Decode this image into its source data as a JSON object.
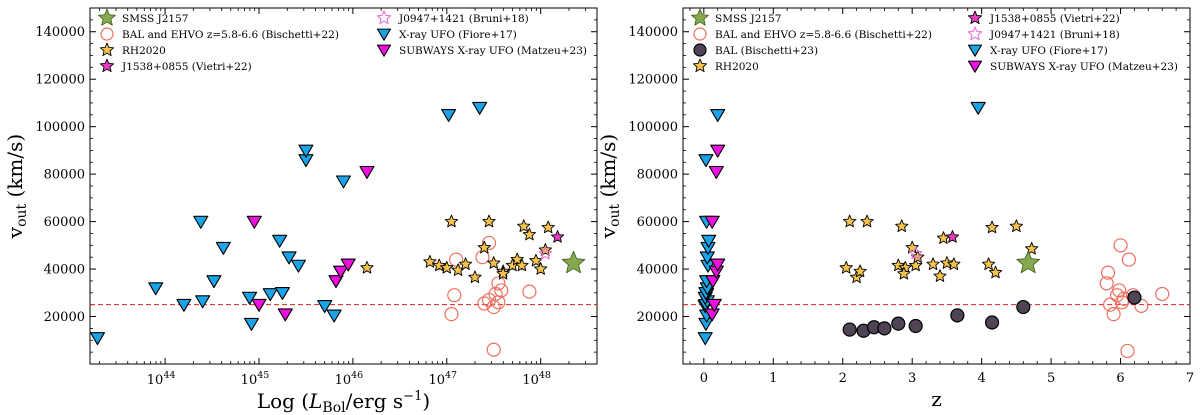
{
  "chart_data": [
    {
      "type": "scatter",
      "title": "",
      "xlabel": "Log (L_Bol/erg s^-1)",
      "xlabel_main": "Log (",
      "xlabel_L": "L",
      "xlabel_sub": "Bol",
      "xlabel_rest": "/erg s",
      "xlabel_sup": "−1",
      "xlabel_close": ")",
      "ylabel": "v_out (km/s)",
      "ylabel_main": "v",
      "ylabel_sub": "out",
      "ylabel_rest": " (km/s)",
      "xscale": "log",
      "xlim_log": [
        43.2,
        48.6
      ],
      "ylim": [
        0,
        150000
      ],
      "xticks_log": [
        44,
        45,
        46,
        47,
        48
      ],
      "xtick_labels": [
        "10",
        "10",
        "10",
        "10",
        "10"
      ],
      "xtick_sups": [
        "44",
        "45",
        "46",
        "47",
        "48"
      ],
      "yticks": [
        20000,
        40000,
        60000,
        80000,
        100000,
        120000,
        140000
      ],
      "ytick_labels": [
        "20000",
        "40000",
        "60000",
        "80000",
        "100000",
        "120000",
        "140000"
      ],
      "hline": 25000,
      "legend": [
        "SMSS J2157",
        "BAL and EHVO z=5.8-6.6 (Bischetti+22)",
        "RH2020",
        "J1538+0855 (Vietri+22)",
        "J0947+1421 (Bruni+18)",
        "X-ray UFO (Fiore+17)",
        "SUBWAYS X-ray UFO (Matzeu+23)"
      ],
      "series": [
        {
          "name": "SMSS J2157",
          "points": [
            [
              48.35,
              42500
            ]
          ]
        },
        {
          "name": "BAL and EHVO z=5.8-6.6 (Bischetti+22)",
          "points": [
            [
              47.05,
              21000
            ],
            [
              47.08,
              29000
            ],
            [
              47.1,
              44000
            ],
            [
              47.38,
              45000
            ],
            [
              47.45,
              51000
            ],
            [
              47.4,
              25500
            ],
            [
              47.45,
              27000
            ],
            [
              47.5,
              24000
            ],
            [
              47.52,
              29500
            ],
            [
              47.55,
              26000
            ],
            [
              47.58,
              31000
            ],
            [
              47.5,
              6000
            ],
            [
              47.88,
              30500
            ],
            [
              47.55,
              34000
            ]
          ]
        },
        {
          "name": "RH2020",
          "points": [
            [
              46.15,
              40500
            ],
            [
              46.82,
              43000
            ],
            [
              46.92,
              41500
            ],
            [
              47.05,
              60000
            ],
            [
              47.12,
              39500
            ],
            [
              47.2,
              42000
            ],
            [
              47.3,
              36500
            ],
            [
              47.4,
              49000
            ],
            [
              47.45,
              60000
            ],
            [
              47.5,
              42500
            ],
            [
              47.6,
              39000
            ],
            [
              47.7,
              41500
            ],
            [
              47.75,
              44000
            ],
            [
              47.8,
              41500
            ],
            [
              47.82,
              58000
            ],
            [
              47.88,
              54500
            ],
            [
              47.95,
              43500
            ],
            [
              48.0,
              40000
            ],
            [
              48.05,
              48000
            ],
            [
              48.08,
              57500
            ],
            [
              47.0,
              40500
            ],
            [
              47.6,
              38000
            ]
          ]
        },
        {
          "name": "J1538+0855 (Vietri+22)",
          "points": [
            [
              48.18,
              53500
            ]
          ]
        },
        {
          "name": "J0947+1421 (Bruni+18)",
          "points": [
            [
              48.05,
              46500
            ]
          ]
        },
        {
          "name": "X-ray UFO (Fiore+17)",
          "points": [
            [
              43.28,
              11000
            ],
            [
              43.9,
              32000
            ],
            [
              44.2,
              25000
            ],
            [
              44.4,
              26500
            ],
            [
              44.38,
              60000
            ],
            [
              44.52,
              35000
            ],
            [
              44.62,
              49000
            ],
            [
              44.92,
              17000
            ],
            [
              44.9,
              28000
            ],
            [
              45.12,
              29500
            ],
            [
              45.25,
              30000
            ],
            [
              45.22,
              52000
            ],
            [
              45.32,
              45000
            ],
            [
              45.42,
              41500
            ],
            [
              45.5,
              86000
            ],
            [
              45.5,
              90000
            ],
            [
              45.7,
              24500
            ],
            [
              45.8,
              20500
            ],
            [
              45.9,
              77000
            ],
            [
              47.02,
              105000
            ],
            [
              47.35,
              108000
            ]
          ]
        },
        {
          "name": "SUBWAYS X-ray UFO (Matzeu+23)",
          "points": [
            [
              44.95,
              60000
            ],
            [
              45.0,
              25000
            ],
            [
              45.28,
              21000
            ],
            [
              45.82,
              35000
            ],
            [
              45.87,
              39000
            ],
            [
              45.95,
              42000
            ],
            [
              46.15,
              81000
            ]
          ]
        }
      ]
    },
    {
      "type": "scatter",
      "title": "",
      "xlabel": "z",
      "ylabel": "v_out (km/s)",
      "ylabel_main": "v",
      "ylabel_sub": "out",
      "ylabel_rest": " (km/s)",
      "xlim": [
        -0.3,
        7
      ],
      "ylim": [
        0,
        150000
      ],
      "xticks": [
        0,
        1,
        2,
        3,
        4,
        5,
        6,
        7
      ],
      "xtick_labels": [
        "0",
        "1",
        "2",
        "3",
        "4",
        "5",
        "6",
        "7"
      ],
      "yticks": [
        20000,
        40000,
        60000,
        80000,
        100000,
        120000,
        140000
      ],
      "ytick_labels": [
        "20000",
        "40000",
        "60000",
        "80000",
        "100000",
        "120000",
        "140000"
      ],
      "hline": 25000,
      "legend": [
        "SMSS J2157",
        "BAL and EHVO z=5.8-6.6 (Bischetti+22)",
        "BAL (Bischetti+23)",
        "RH2020",
        "J1538+0855 (Vietri+22)",
        "J0947+1421 (Bruni+18)",
        "X-ray UFO (Fiore+17)",
        "SUBWAYS X-ray UFO (Matzeu+23)"
      ],
      "series": [
        {
          "name": "SMSS J2157",
          "points": [
            [
              4.67,
              42500
            ]
          ]
        },
        {
          "name": "BAL and EHVO z=5.8-6.6 (Bischetti+22)",
          "points": [
            [
              5.82,
              38500
            ],
            [
              5.85,
              25000
            ],
            [
              5.9,
              21000
            ],
            [
              5.95,
              29000
            ],
            [
              5.98,
              31000
            ],
            [
              6.02,
              26000
            ],
            [
              6.0,
              50000
            ],
            [
              6.05,
              27500
            ],
            [
              6.1,
              5500
            ],
            [
              6.12,
              44000
            ],
            [
              6.18,
              29000
            ],
            [
              6.3,
              24500
            ],
            [
              6.6,
              29500
            ],
            [
              5.8,
              34000
            ]
          ]
        },
        {
          "name": "BAL (Bischetti+23)",
          "points": [
            [
              2.1,
              14500
            ],
            [
              2.3,
              14000
            ],
            [
              2.45,
              15500
            ],
            [
              2.6,
              15000
            ],
            [
              2.8,
              17000
            ],
            [
              3.05,
              16000
            ],
            [
              3.65,
              20500
            ],
            [
              4.15,
              17500
            ],
            [
              4.6,
              24000
            ],
            [
              6.2,
              28000
            ]
          ]
        },
        {
          "name": "RH2020",
          "points": [
            [
              2.05,
              40500
            ],
            [
              2.1,
              60000
            ],
            [
              2.2,
              36500
            ],
            [
              2.25,
              39000
            ],
            [
              2.35,
              60000
            ],
            [
              2.8,
              41500
            ],
            [
              2.85,
              58000
            ],
            [
              2.9,
              40500
            ],
            [
              2.88,
              38000
            ],
            [
              3.0,
              49000
            ],
            [
              3.05,
              41500
            ],
            [
              3.08,
              45000
            ],
            [
              3.3,
              42000
            ],
            [
              3.4,
              37000
            ],
            [
              3.45,
              53000
            ],
            [
              3.5,
              42500
            ],
            [
              3.6,
              42000
            ],
            [
              4.1,
              42000
            ],
            [
              4.15,
              57500
            ],
            [
              4.2,
              38500
            ],
            [
              4.5,
              58000
            ],
            [
              4.72,
              48500
            ]
          ]
        },
        {
          "name": "J1538+0855 (Vietri+22)",
          "points": [
            [
              3.58,
              53500
            ]
          ]
        },
        {
          "name": "J0947+1421 (Bruni+18)",
          "points": [
            [
              3.05,
              46500
            ]
          ]
        },
        {
          "name": "X-ray UFO (Fiore+17)",
          "points": [
            [
              0.02,
              11000
            ],
            [
              0.03,
              17000
            ],
            [
              0.04,
              20500
            ],
            [
              0.02,
              24500
            ],
            [
              0.03,
              25000
            ],
            [
              0.05,
              26500
            ],
            [
              0.02,
              28000
            ],
            [
              0.04,
              29500
            ],
            [
              0.03,
              30000
            ],
            [
              0.05,
              32000
            ],
            [
              0.04,
              35000
            ],
            [
              0.06,
              41500
            ],
            [
              0.05,
              45000
            ],
            [
              0.06,
              49000
            ],
            [
              0.07,
              52000
            ],
            [
              0.04,
              60000
            ],
            [
              0.03,
              86000
            ],
            [
              0.2,
              105000
            ],
            [
              3.95,
              108000
            ]
          ]
        },
        {
          "name": "SUBWAYS X-ray UFO (Matzeu+23)",
          "points": [
            [
              0.12,
              21000
            ],
            [
              0.15,
              25000
            ],
            [
              0.13,
              35000
            ],
            [
              0.18,
              39000
            ],
            [
              0.2,
              42000
            ],
            [
              0.12,
              60000
            ],
            [
              0.18,
              81000
            ],
            [
              0.2,
              90000
            ]
          ]
        }
      ]
    }
  ],
  "colors": {
    "smss": "#86a84e",
    "bal_open": "#ef6f5e",
    "bal23": "#4f4456",
    "rh": "#f6c34c",
    "vietri": "#e43fbd",
    "bruni": "#ee6fd9",
    "xray": "#1aa3e6",
    "subways": "#ee10e0",
    "hline": "#dd2222"
  }
}
